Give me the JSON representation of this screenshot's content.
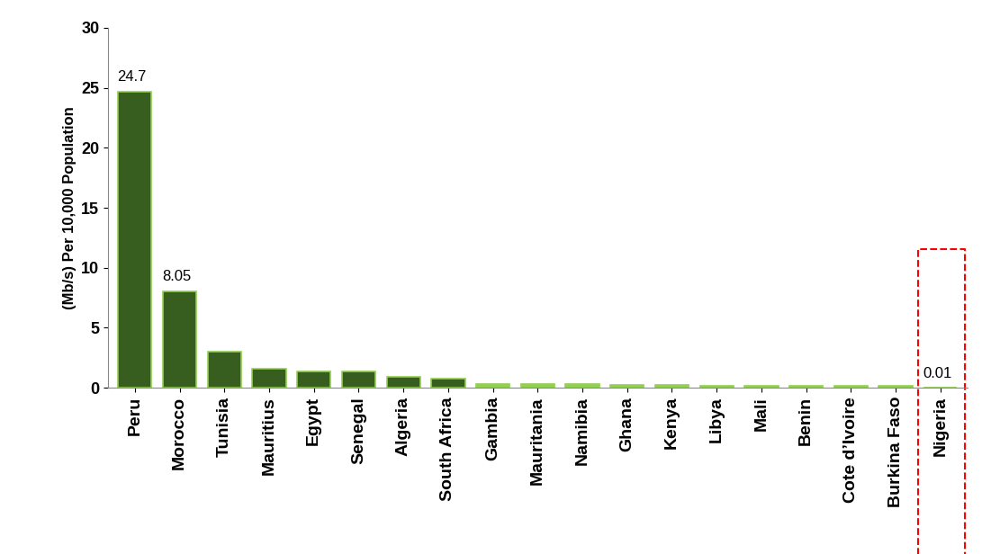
{
  "chart_data": {
    "type": "bar",
    "y_label": "(Mb/s) Per 10,000 Population",
    "categories": [
      "Peru",
      "Morocco",
      "Tunisia",
      "Mauritius",
      "Egypt",
      "Senegal",
      "Algeria",
      "South Africa",
      "Gambia",
      "Mauritania",
      "Namibia",
      "Ghana",
      "Kenya",
      "Libya",
      "Mali",
      "Benin",
      "Cote d’Ivoire",
      "Burkina Faso",
      "Nigeria"
    ],
    "values": [
      24.7,
      8.05,
      3.0,
      1.6,
      1.4,
      1.4,
      0.9,
      0.8,
      0.35,
      0.35,
      0.35,
      0.25,
      0.25,
      0.2,
      0.2,
      0.2,
      0.2,
      0.2,
      0.01
    ],
    "value_labels": [
      "24.7",
      "8.05",
      null,
      null,
      null,
      null,
      null,
      null,
      null,
      null,
      null,
      null,
      null,
      null,
      null,
      null,
      null,
      null,
      "0.01"
    ],
    "data_labels": true,
    "colors": [
      "#375e1f",
      "#375e1f",
      "#375e1f",
      "#375e1f",
      "#375e1f",
      "#375e1f",
      "#375e1f",
      "#375e1f",
      "#92d050",
      "#92d050",
      "#92d050",
      "#92d050",
      "#92d050",
      "#92d050",
      "#92d050",
      "#92d050",
      "#92d050",
      "#92d050",
      "#92d050"
    ],
    "ylim": [
      0,
      30
    ],
    "yticks": [
      0,
      5,
      10,
      15,
      20,
      25,
      30
    ],
    "grid": false
  }
}
